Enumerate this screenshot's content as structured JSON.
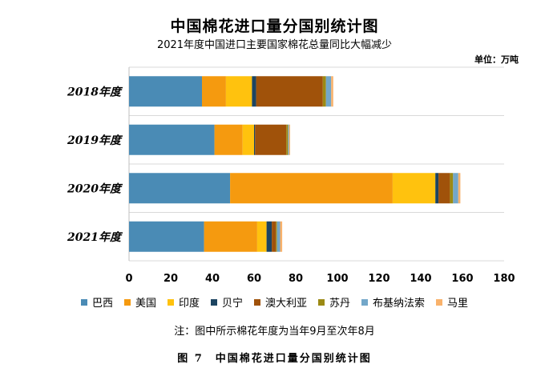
{
  "title": "中国棉花进口量分国别统计图",
  "subtitle": "2021年度中国进口主要国家棉花总量同比大幅减少",
  "unit": "单位：万吨",
  "note": "注：图中所示棉花年度为当年9月至次年8月",
  "caption": "图 7　中国棉花进口量分国别统计图",
  "chart_data": {
    "type": "bar",
    "orientation": "horizontal",
    "stacked": true,
    "categories": [
      "2018年度",
      "2019年度",
      "2020年度",
      "2021年度"
    ],
    "xlim": [
      0,
      180
    ],
    "xticks": [
      "0",
      "20",
      "40",
      "60",
      "80",
      "100",
      "120",
      "140",
      "160",
      "180"
    ],
    "grid": "horizontal",
    "legend_position": "bottom",
    "series": [
      {
        "name": "巴西",
        "color": "#4A8BB5",
        "values": [
          35,
          41,
          48.5,
          36
        ]
      },
      {
        "name": "美国",
        "color": "#F59A0F",
        "values": [
          11.5,
          13.5,
          78,
          25.5
        ]
      },
      {
        "name": "印度",
        "color": "#FFC20E",
        "values": [
          12.5,
          5.5,
          20.5,
          4.5
        ]
      },
      {
        "name": "贝宁",
        "color": "#1C4461",
        "values": [
          2,
          0.5,
          1.5,
          2.5
        ]
      },
      {
        "name": "澳大利亚",
        "color": "#A0520A",
        "values": [
          32,
          15,
          5.5,
          2
        ]
      },
      {
        "name": "苏丹",
        "color": "#9C8A14",
        "values": [
          1.5,
          0.8,
          1.5,
          0.5
        ]
      },
      {
        "name": "布基纳法索",
        "color": "#73A7C9",
        "values": [
          2.5,
          0.5,
          2.5,
          1.5
        ]
      },
      {
        "name": "马里",
        "color": "#F9B26B",
        "values": [
          1,
          0.5,
          1,
          1
        ]
      }
    ]
  }
}
